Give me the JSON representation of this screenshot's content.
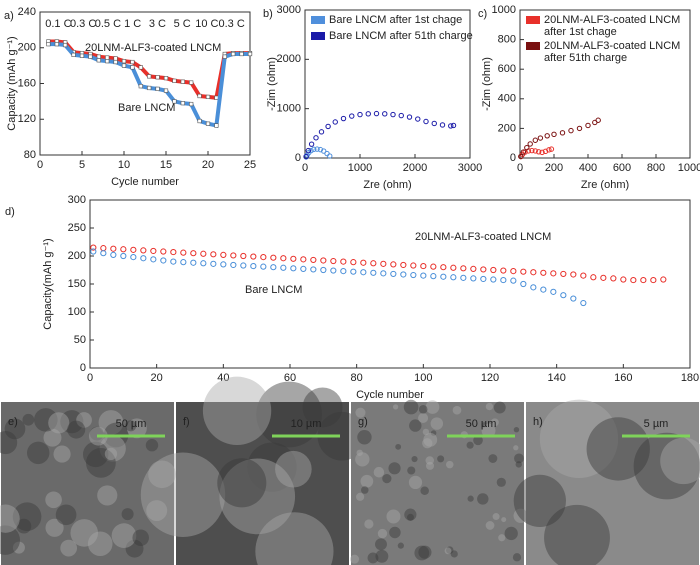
{
  "chart_data": [
    {
      "type": "line",
      "panel_label": "a)",
      "xlabel": "Cycle number",
      "ylabel": "Capacity (mAh g⁻¹)",
      "xlim": [
        0,
        25
      ],
      "xticks": [
        0,
        5,
        10,
        15,
        20,
        25
      ],
      "ylim": [
        80,
        240
      ],
      "yticks": [
        80,
        120,
        160,
        200,
        240
      ],
      "rate_labels": [
        "0.1 C",
        "0.3 C",
        "0.5 C",
        "1 C",
        "3 C",
        "5 C",
        "10 C",
        "0.3 C"
      ],
      "legend": "inline",
      "x": [
        1,
        2,
        3,
        4,
        5,
        6,
        7,
        8,
        9,
        10,
        11,
        12,
        13,
        14,
        15,
        16,
        17,
        18,
        19,
        20,
        21,
        22,
        23,
        24,
        25
      ],
      "series": [
        {
          "name": "20LNM-ALF3-coated LNCM",
          "color": "#e8302a",
          "values": [
            207,
            207,
            206,
            195,
            194,
            193,
            190,
            189,
            188,
            185,
            184,
            178,
            168,
            167,
            166,
            163,
            162,
            161,
            146,
            145,
            144,
            193,
            194,
            194,
            194
          ]
        },
        {
          "name": "Bare LNCM",
          "color": "#4a8fd8",
          "values": [
            204,
            204,
            203,
            192,
            191,
            190,
            186,
            185,
            184,
            180,
            178,
            157,
            155,
            154,
            152,
            140,
            138,
            137,
            118,
            115,
            113,
            190,
            193,
            193,
            193
          ]
        }
      ]
    },
    {
      "type": "scatter",
      "panel_label": "b)",
      "xlabel": "Zre (ohm)",
      "ylabel": "-Zim (ohm)",
      "xlim": [
        0,
        3000
      ],
      "xticks": [
        0,
        1000,
        2000,
        3000
      ],
      "ylim": [
        0,
        3000
      ],
      "yticks": [
        0,
        1000,
        2000,
        3000
      ],
      "legend": "upper left",
      "series": [
        {
          "name": "Bare LNCM after 1st chage",
          "color": "#4f8fdc",
          "x": [
            20,
            40,
            70,
            110,
            160,
            220,
            280,
            340,
            400,
            450
          ],
          "values": [
            20,
            60,
            110,
            150,
            175,
            180,
            170,
            140,
            90,
            40
          ]
        },
        {
          "name": "Bare LNCM after 51th charge",
          "color": "#1a1aa8",
          "x": [
            20,
            60,
            120,
            200,
            300,
            420,
            550,
            700,
            850,
            1000,
            1150,
            1300,
            1450,
            1600,
            1750,
            1900,
            2050,
            2200,
            2350,
            2500,
            2650,
            2700
          ],
          "values": [
            30,
            150,
            280,
            410,
            530,
            640,
            730,
            800,
            850,
            880,
            895,
            900,
            895,
            880,
            860,
            830,
            790,
            740,
            700,
            670,
            650,
            660
          ]
        }
      ]
    },
    {
      "type": "scatter",
      "panel_label": "c)",
      "xlabel": "Zre (ohm)",
      "ylabel": "-Zim (ohm)",
      "xlim": [
        0,
        1000
      ],
      "xticks": [
        0,
        200,
        400,
        600,
        800,
        1000
      ],
      "ylim": [
        0,
        1000
      ],
      "yticks": [
        0,
        200,
        400,
        600,
        800,
        1000
      ],
      "legend": "upper left",
      "series": [
        {
          "name": "20LNM-ALF3-coated LNCM after 1st chage",
          "color": "#e8302a",
          "x": [
            5,
            15,
            30,
            50,
            70,
            90,
            110,
            130,
            150,
            170,
            185
          ],
          "values": [
            10,
            25,
            40,
            48,
            50,
            48,
            42,
            38,
            45,
            55,
            60
          ]
        },
        {
          "name": "20LNM-ALF3-coated LNCM after 51th charge",
          "color": "#7a1010",
          "x": [
            5,
            20,
            40,
            60,
            90,
            120,
            160,
            200,
            250,
            300,
            350,
            400,
            440,
            460
          ],
          "values": [
            10,
            40,
            70,
            95,
            120,
            135,
            150,
            160,
            170,
            185,
            200,
            220,
            240,
            255
          ]
        }
      ]
    },
    {
      "type": "scatter",
      "panel_label": "d)",
      "xlabel": "Cycle number",
      "ylabel": "Capacity(mAh g⁻¹)",
      "xlim": [
        0,
        180
      ],
      "xticks": [
        0,
        20,
        40,
        60,
        80,
        100,
        120,
        140,
        160,
        180
      ],
      "ylim": [
        0,
        300
      ],
      "yticks": [
        0,
        50,
        100,
        150,
        200,
        250,
        300
      ],
      "legend": "inline",
      "series": [
        {
          "name": "20LNM-ALF3-coated LNCM",
          "color": "#e8302a",
          "x": [
            1,
            4,
            7,
            10,
            13,
            16,
            19,
            22,
            25,
            28,
            31,
            34,
            37,
            40,
            43,
            46,
            49,
            52,
            55,
            58,
            61,
            64,
            67,
            70,
            73,
            76,
            79,
            82,
            85,
            88,
            91,
            94,
            97,
            100,
            103,
            106,
            109,
            112,
            115,
            118,
            121,
            124,
            127,
            130,
            133,
            136,
            139,
            142,
            145,
            148,
            151,
            154,
            157,
            160,
            163,
            166,
            169,
            172
          ],
          "values": [
            215,
            214,
            213,
            212,
            211,
            210,
            209,
            208,
            207,
            206,
            205,
            204,
            203,
            202,
            201,
            200,
            199,
            198,
            197,
            196,
            195,
            194,
            193,
            192,
            191,
            190,
            189,
            188,
            187,
            186,
            185,
            184,
            183,
            182,
            181,
            180,
            179,
            178,
            177,
            176,
            175,
            174,
            173,
            172,
            171,
            170,
            169,
            168,
            167,
            165,
            162,
            161,
            160,
            158,
            157,
            157,
            157,
            158
          ]
        },
        {
          "name": "Bare LNCM",
          "color": "#4a8fd8",
          "x": [
            1,
            4,
            7,
            10,
            13,
            16,
            19,
            22,
            25,
            28,
            31,
            34,
            37,
            40,
            43,
            46,
            49,
            52,
            55,
            58,
            61,
            64,
            67,
            70,
            73,
            76,
            79,
            82,
            85,
            88,
            91,
            94,
            97,
            100,
            103,
            106,
            109,
            112,
            115,
            118,
            121,
            124,
            127,
            130,
            133,
            136,
            139,
            142,
            145,
            148
          ],
          "values": [
            208,
            205,
            202,
            200,
            198,
            196,
            194,
            192,
            190,
            189,
            188,
            187,
            186,
            185,
            184,
            183,
            182,
            181,
            180,
            179,
            178,
            177,
            176,
            175,
            174,
            173,
            172,
            171,
            170,
            169,
            168,
            167,
            166,
            165,
            164,
            163,
            162,
            161,
            160,
            159,
            158,
            157,
            156,
            150,
            144,
            140,
            136,
            130,
            124,
            116
          ]
        }
      ]
    }
  ],
  "micrographs": [
    {
      "label": "e)",
      "scale_bar": "50 µm"
    },
    {
      "label": "f)",
      "scale_bar": "10 µm"
    },
    {
      "label": "g)",
      "scale_bar": "50 µm"
    },
    {
      "label": "h)",
      "scale_bar": "5 µm"
    }
  ]
}
